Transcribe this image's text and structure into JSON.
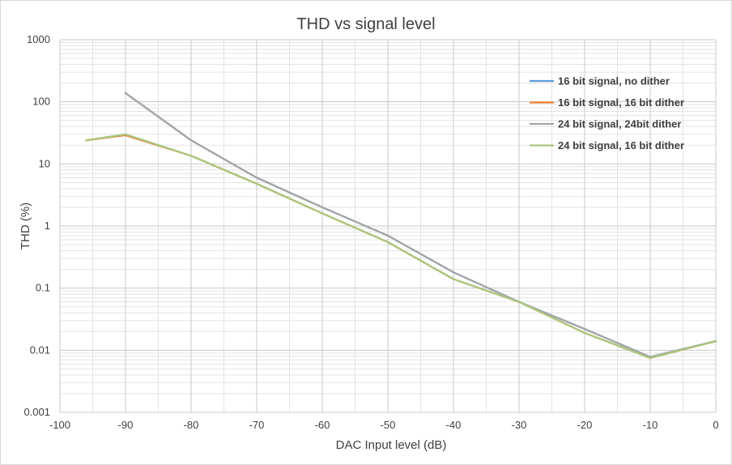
{
  "chart_data": {
    "type": "line",
    "title": "THD vs signal level",
    "xlabel": "DAC Input level (dB)",
    "ylabel": "THD (%)",
    "xlim": [
      -100,
      0
    ],
    "ylim": [
      0.001,
      1000
    ],
    "yscale": "log",
    "x_ticks": [
      "-100",
      "-90",
      "-80",
      "-70",
      "-60",
      "-50",
      "-40",
      "-30",
      "-20",
      "-10",
      "0"
    ],
    "y_ticks": [
      "0.001",
      "0.01",
      "0.1",
      "1",
      "10",
      "100",
      "1000"
    ],
    "grid": true,
    "legend_position": "top-right",
    "series": [
      {
        "name": "16 bit signal, no dither",
        "color": "#5b9bd5",
        "x": [
          -90,
          -80,
          -70,
          -60,
          -50,
          -40,
          -30,
          -20,
          -10,
          0
        ],
        "y": [
          138,
          24,
          6,
          2,
          0.7,
          0.18,
          0.06,
          0.022,
          0.0078,
          0.014
        ]
      },
      {
        "name": "16 bit signal, 16 bit dither",
        "color": "#ed7d31",
        "x": [
          -96,
          -90,
          -80,
          -70,
          -60,
          -50,
          -40,
          -30,
          -20,
          -10,
          0
        ],
        "y": [
          24,
          29,
          13.5,
          4.8,
          1.6,
          0.55,
          0.14,
          0.06,
          0.019,
          0.0075,
          0.014
        ]
      },
      {
        "name": "24 bit signal, 24bit dither",
        "color": "#a5a5a5",
        "x": [
          -90,
          -80,
          -70,
          -60,
          -50,
          -40,
          -30,
          -20,
          -10,
          0
        ],
        "y": [
          138,
          24,
          6,
          2,
          0.7,
          0.18,
          0.06,
          0.022,
          0.0078,
          0.014
        ]
      },
      {
        "name": "24 bit signal, 16 bit dither",
        "color": "#a9c77e",
        "x": [
          -96,
          -90,
          -80,
          -70,
          -60,
          -50,
          -40,
          -30,
          -20,
          -10,
          0
        ],
        "y": [
          24,
          30,
          13.5,
          4.8,
          1.6,
          0.55,
          0.14,
          0.06,
          0.019,
          0.0075,
          0.014
        ]
      }
    ]
  }
}
